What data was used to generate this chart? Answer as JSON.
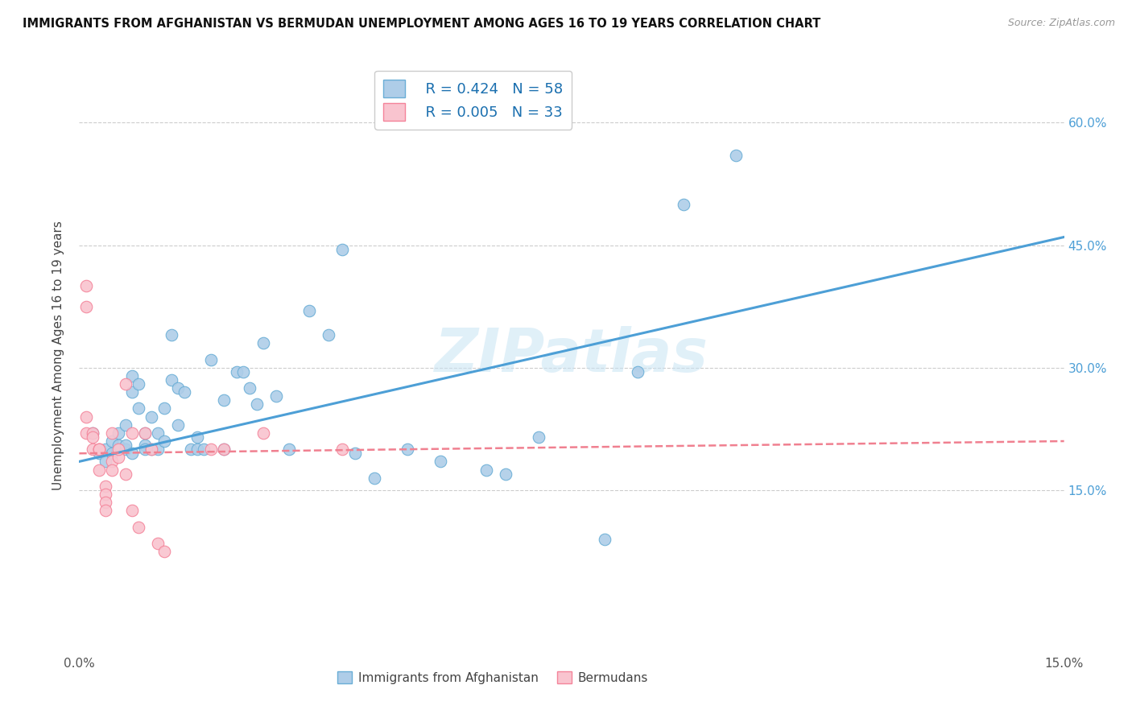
{
  "title": "IMMIGRANTS FROM AFGHANISTAN VS BERMUDAN UNEMPLOYMENT AMONG AGES 16 TO 19 YEARS CORRELATION CHART",
  "source": "Source: ZipAtlas.com",
  "ylabel": "Unemployment Among Ages 16 to 19 years",
  "ytick_vals": [
    15.0,
    30.0,
    45.0,
    60.0
  ],
  "ytick_labels": [
    "15.0%",
    "30.0%",
    "45.0%",
    "60.0%"
  ],
  "xlim": [
    0.0,
    15.0
  ],
  "ylim": [
    -5.0,
    68.0
  ],
  "legend_r1": "R = 0.424",
  "legend_n1": "N = 58",
  "legend_r2": "R = 0.005",
  "legend_n2": "N = 33",
  "color_blue": "#aecde8",
  "color_pink": "#f9c4cf",
  "color_blue_edge": "#6aaed6",
  "color_pink_edge": "#f4849a",
  "color_line_blue": "#4d9fd6",
  "color_line_pink": "#f08090",
  "watermark": "ZIPatlas",
  "blue_scatter_x": [
    0.2,
    0.3,
    0.4,
    0.4,
    0.5,
    0.5,
    0.6,
    0.6,
    0.7,
    0.7,
    0.7,
    0.8,
    0.8,
    0.8,
    0.9,
    0.9,
    1.0,
    1.0,
    1.0,
    1.1,
    1.1,
    1.2,
    1.2,
    1.3,
    1.3,
    1.4,
    1.4,
    1.5,
    1.5,
    1.6,
    1.7,
    1.8,
    1.8,
    1.9,
    2.0,
    2.2,
    2.2,
    2.4,
    2.5,
    2.6,
    2.7,
    2.8,
    3.0,
    3.2,
    3.5,
    3.8,
    4.0,
    4.2,
    4.5,
    5.0,
    5.5,
    6.2,
    6.5,
    7.0,
    8.0,
    8.5,
    9.2,
    10.0
  ],
  "blue_scatter_y": [
    22.0,
    19.5,
    20.0,
    18.5,
    19.5,
    21.0,
    20.5,
    22.0,
    20.0,
    20.5,
    23.0,
    27.0,
    29.0,
    19.5,
    25.0,
    28.0,
    20.5,
    22.0,
    20.0,
    24.0,
    20.0,
    22.0,
    20.0,
    21.0,
    25.0,
    28.5,
    34.0,
    23.0,
    27.5,
    27.0,
    20.0,
    20.0,
    21.5,
    20.0,
    31.0,
    20.0,
    26.0,
    29.5,
    29.5,
    27.5,
    25.5,
    33.0,
    26.5,
    20.0,
    37.0,
    34.0,
    44.5,
    19.5,
    16.5,
    20.0,
    18.5,
    17.5,
    17.0,
    21.5,
    9.0,
    29.5,
    50.0,
    56.0
  ],
  "pink_scatter_x": [
    0.1,
    0.1,
    0.1,
    0.1,
    0.2,
    0.2,
    0.2,
    0.3,
    0.3,
    0.3,
    0.3,
    0.4,
    0.4,
    0.4,
    0.4,
    0.5,
    0.5,
    0.5,
    0.6,
    0.6,
    0.7,
    0.7,
    0.8,
    0.8,
    0.9,
    1.0,
    1.1,
    1.2,
    1.3,
    2.0,
    2.2,
    2.8,
    4.0
  ],
  "pink_scatter_y": [
    40.0,
    37.5,
    24.0,
    22.0,
    22.0,
    21.5,
    20.0,
    20.0,
    20.0,
    20.0,
    17.5,
    15.5,
    14.5,
    13.5,
    12.5,
    22.0,
    18.5,
    17.5,
    19.0,
    20.0,
    17.0,
    28.0,
    22.0,
    12.5,
    10.5,
    22.0,
    20.0,
    8.5,
    7.5,
    20.0,
    20.0,
    22.0,
    20.0
  ],
  "blue_line_x": [
    0.0,
    15.0
  ],
  "blue_line_y": [
    18.5,
    46.0
  ],
  "pink_line_x": [
    0.0,
    15.0
  ],
  "pink_line_y": [
    19.5,
    21.0
  ]
}
